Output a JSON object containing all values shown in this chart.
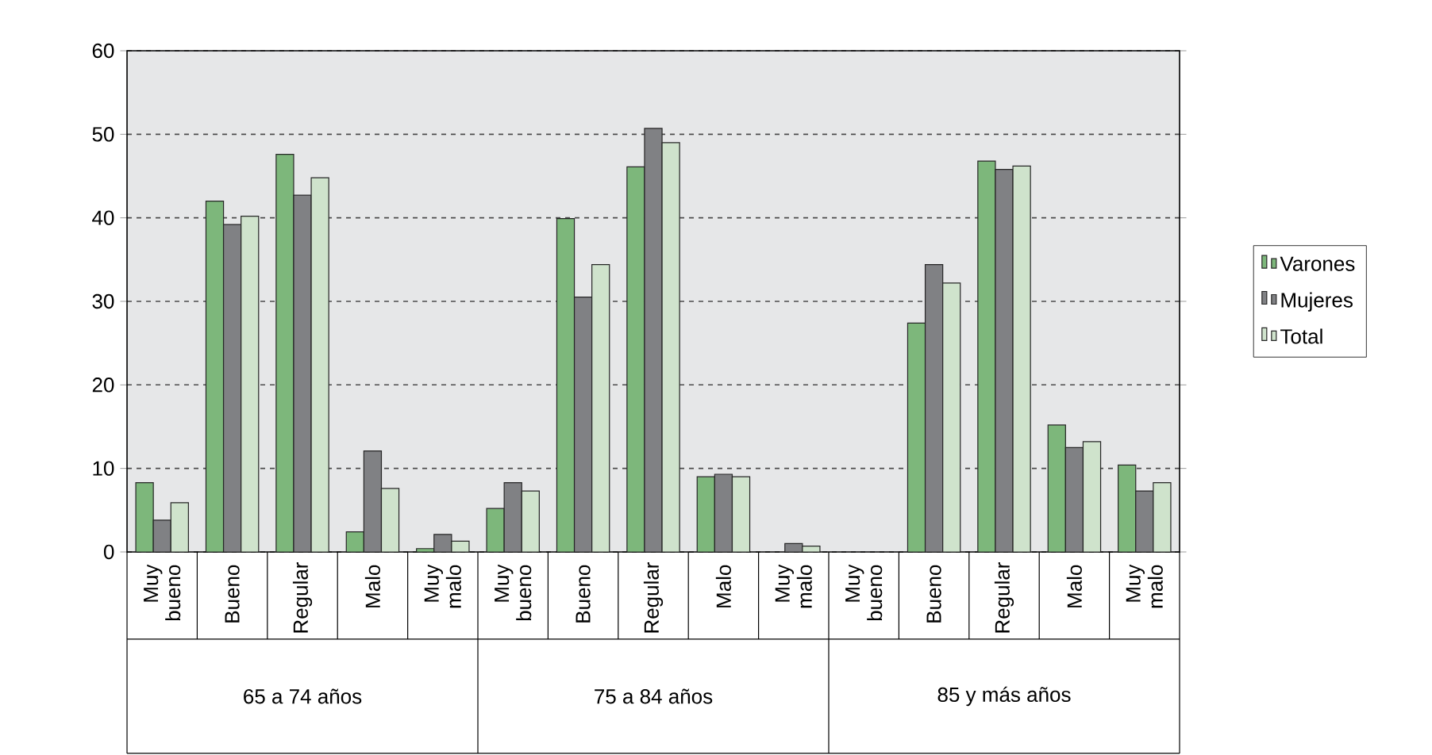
{
  "chart_data": {
    "type": "bar",
    "categories": [
      "Muy bueno",
      "Bueno",
      "Regular",
      "Malo",
      "Muy malo",
      "Muy bueno",
      "Bueno",
      "Regular",
      "Malo",
      "Muy malo",
      "Muy bueno",
      "Bueno",
      "Regular",
      "Malo",
      "Muy malo"
    ],
    "series": [
      {
        "name": "Varones",
        "color": "#7db77b",
        "values": [
          8.3,
          42.0,
          47.6,
          2.4,
          0.4,
          5.2,
          39.9,
          46.1,
          9.0,
          null,
          null,
          27.4,
          46.8,
          15.2,
          10.4
        ]
      },
      {
        "name": "Mujeres",
        "color": "#808184",
        "values": [
          3.8,
          39.2,
          42.7,
          12.1,
          2.1,
          8.3,
          30.5,
          50.7,
          9.3,
          1.0,
          null,
          34.4,
          45.8,
          12.5,
          7.3
        ]
      },
      {
        "name": "Total",
        "color": "#cfe3cc",
        "values": [
          5.9,
          40.2,
          44.8,
          7.6,
          1.3,
          7.3,
          34.4,
          49.0,
          9.0,
          0.7,
          null,
          32.2,
          46.2,
          13.2,
          8.3
        ]
      }
    ],
    "annotations": [
      "65 a 74 años",
      "75 a 84 años",
      "85 y más años"
    ],
    "ylim": [
      0,
      60
    ],
    "yticks": [
      0,
      10,
      20,
      30,
      40,
      50,
      60
    ],
    "grid": "y",
    "legend": "right"
  }
}
